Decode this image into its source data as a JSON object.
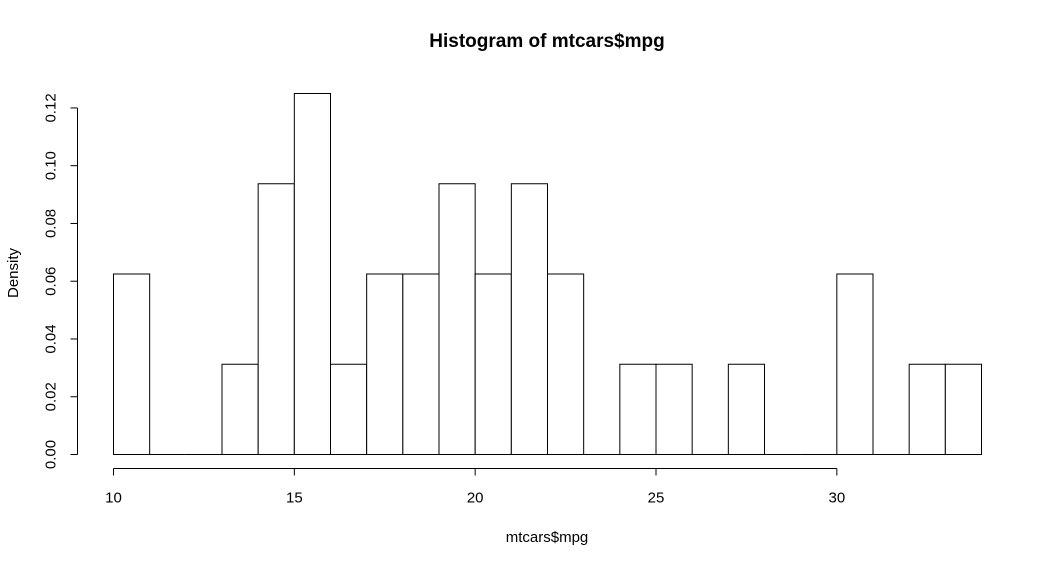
{
  "chart_data": {
    "type": "bar",
    "subtype": "histogram",
    "title": "Histogram of mtcars$mpg",
    "xlabel": "mtcars$mpg",
    "ylabel": "Density",
    "xlim": [
      10,
      34
    ],
    "ylim": [
      0,
      0.125
    ],
    "x_ticks": [
      10,
      15,
      20,
      25,
      30
    ],
    "x_tick_labels": [
      "10",
      "15",
      "20",
      "25",
      "30"
    ],
    "y_ticks": [
      0,
      0.02,
      0.04,
      0.06,
      0.08,
      0.1,
      0.12
    ],
    "y_tick_labels": [
      "0.00",
      "0.02",
      "0.04",
      "0.06",
      "0.08",
      "0.10",
      "0.12"
    ],
    "grid": false,
    "bins": [
      {
        "start": 10,
        "end": 11,
        "density": 0.0625
      },
      {
        "start": 11,
        "end": 12,
        "density": 0
      },
      {
        "start": 12,
        "end": 13,
        "density": 0
      },
      {
        "start": 13,
        "end": 14,
        "density": 0.03125
      },
      {
        "start": 14,
        "end": 15,
        "density": 0.09375
      },
      {
        "start": 15,
        "end": 16,
        "density": 0.125
      },
      {
        "start": 16,
        "end": 17,
        "density": 0.03125
      },
      {
        "start": 17,
        "end": 18,
        "density": 0.0625
      },
      {
        "start": 18,
        "end": 19,
        "density": 0.0625
      },
      {
        "start": 19,
        "end": 20,
        "density": 0.09375
      },
      {
        "start": 20,
        "end": 21,
        "density": 0.0625
      },
      {
        "start": 21,
        "end": 22,
        "density": 0.09375
      },
      {
        "start": 22,
        "end": 23,
        "density": 0.0625
      },
      {
        "start": 23,
        "end": 24,
        "density": 0
      },
      {
        "start": 24,
        "end": 25,
        "density": 0.03125
      },
      {
        "start": 25,
        "end": 26,
        "density": 0.03125
      },
      {
        "start": 26,
        "end": 27,
        "density": 0
      },
      {
        "start": 27,
        "end": 28,
        "density": 0.03125
      },
      {
        "start": 28,
        "end": 29,
        "density": 0
      },
      {
        "start": 29,
        "end": 30,
        "density": 0
      },
      {
        "start": 30,
        "end": 31,
        "density": 0.0625
      },
      {
        "start": 31,
        "end": 32,
        "density": 0
      },
      {
        "start": 32,
        "end": 33,
        "density": 0.03125
      },
      {
        "start": 33,
        "end": 34,
        "density": 0.03125
      }
    ]
  }
}
